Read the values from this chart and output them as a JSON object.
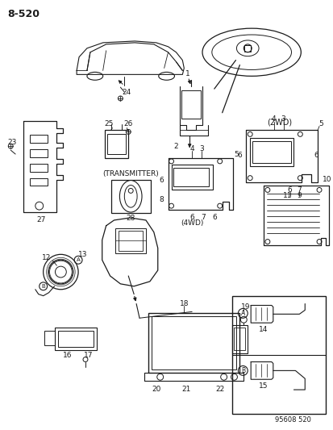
{
  "title": "8-520",
  "watermark": "95608 520",
  "bg": "#ffffff",
  "lc": "#1a1a1a",
  "parts": {
    "page": "8-520",
    "wm": "95608 520",
    "transmitter_label": "(TRANSMITTER)",
    "twowd_label": "(2WD)",
    "fourwd_label": "(4WD)"
  }
}
